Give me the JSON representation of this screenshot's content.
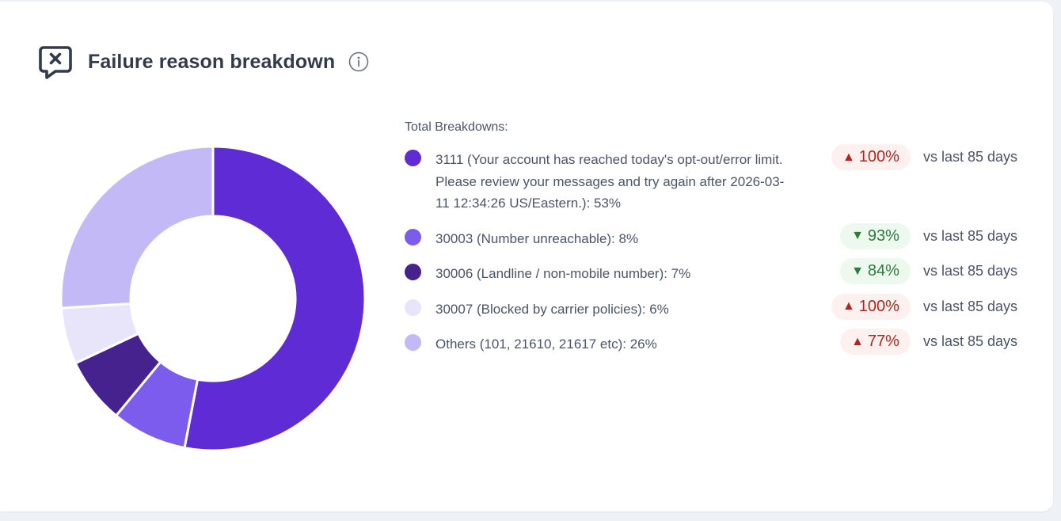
{
  "card": {
    "title": "Failure reason breakdown",
    "icon": "message-x-icon",
    "info_icon": "info-icon"
  },
  "legend": {
    "title": "Total Breakdowns:",
    "items": [
      {
        "label": "3111 (Your account has reached today's opt-out/error limit. Please review your messages and try again after 2026-03-11 12:34:26 US/Eastern.): 53%",
        "color": "#5f2bd4",
        "delta": "100%",
        "direction": "up",
        "vs": "vs last 85 days"
      },
      {
        "label": "30003 (Number unreachable): 8%",
        "color": "#7c5ced",
        "delta": "93%",
        "direction": "down",
        "vs": "vs last 85 days"
      },
      {
        "label": "30006 (Landline / non-mobile number): 7%",
        "color": "#46228f",
        "delta": "84%",
        "direction": "down",
        "vs": "vs last 85 days"
      },
      {
        "label": "30007 (Blocked by carrier policies): 6%",
        "color": "#e8e5fb",
        "delta": "100%",
        "direction": "up",
        "vs": "vs last 85 days"
      },
      {
        "label": "Others (101, 21610, 21617 etc): 26%",
        "color": "#c4b9f7",
        "delta": "77%",
        "direction": "up",
        "vs": "vs last 85 days"
      }
    ]
  },
  "colors": {
    "up_text": "#b3261e",
    "up_bg": "#fdf1f0",
    "down_text": "#2e7d3c",
    "down_bg": "#edf8ef"
  },
  "chart_data": {
    "type": "pie",
    "donut": true,
    "categories": [
      "3111",
      "30003",
      "30006",
      "30007",
      "Others"
    ],
    "values": [
      53,
      8,
      7,
      6,
      26
    ],
    "colors": [
      "#5f2bd4",
      "#7c5ced",
      "#46228f",
      "#e8e5fb",
      "#c4b9f7"
    ],
    "title": "Failure reason breakdown",
    "legend": "right"
  }
}
